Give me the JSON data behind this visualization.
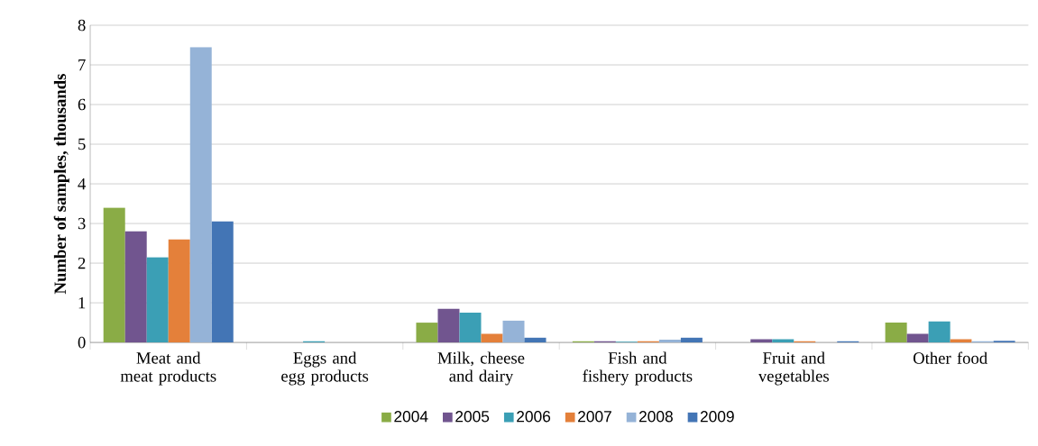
{
  "chart_data": {
    "type": "bar",
    "ylabel": "Number of samples, thousands",
    "categories": [
      "Meat and meat products",
      "Eggs and egg products",
      "Milk, cheese and dairy",
      "Fish and fishery products",
      "Fruit and vegetables",
      "Other food"
    ],
    "series": [
      {
        "name": "2004",
        "color": "#8aac46",
        "values": [
          3.4,
          0,
          0.5,
          0.03,
          0,
          0.5
        ]
      },
      {
        "name": "2005",
        "color": "#71558f",
        "values": [
          2.8,
          0,
          0.85,
          0.03,
          0.08,
          0.22
        ]
      },
      {
        "name": "2006",
        "color": "#3b9fb5",
        "values": [
          2.15,
          0.03,
          0.75,
          0.02,
          0.08,
          0.53
        ]
      },
      {
        "name": "2007",
        "color": "#e4803a",
        "values": [
          2.6,
          0,
          0.22,
          0.03,
          0.03,
          0.08
        ]
      },
      {
        "name": "2008",
        "color": "#95b3d7",
        "values": [
          7.45,
          0,
          0.55,
          0.07,
          0,
          0.03
        ]
      },
      {
        "name": "2009",
        "color": "#4375b5",
        "values": [
          3.05,
          0,
          0.12,
          0.12,
          0.03,
          0.04
        ]
      }
    ],
    "ylim": [
      0,
      8
    ],
    "yticks": [
      0,
      1,
      2,
      3,
      4,
      5,
      6,
      7,
      8
    ],
    "grid": "y",
    "legend": "bottom"
  }
}
